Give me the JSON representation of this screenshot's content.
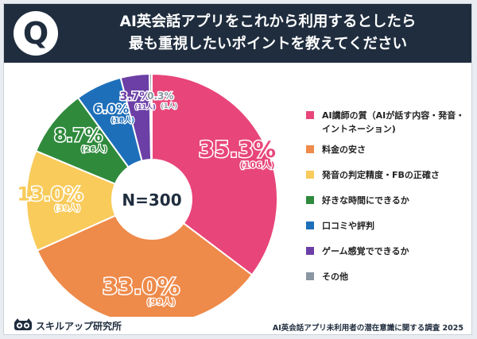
{
  "header": {
    "badge": "Q",
    "title_line1": "AI英会話アプリをこれから利用するとしたら",
    "title_line2": "最も重視したいポイントを教えてください"
  },
  "chart_data": {
    "type": "pie",
    "donut": true,
    "center_label": "N=300",
    "legend_position": "right",
    "slices": [
      {
        "label": "AI講師の質（AIが話す内容・発音・イントネーション)",
        "legend_lines": [
          "AI講師の質（AIが話す内容・発音・",
          "イントネーション)"
        ],
        "percent": 35.3,
        "count": 106,
        "percent_label": "35.3%",
        "count_label": "(106人)",
        "color": "#e8457a"
      },
      {
        "label": "料金の安さ",
        "legend_lines": [
          "料金の安さ"
        ],
        "percent": 33.0,
        "count": 99,
        "percent_label": "33.0%",
        "count_label": "(99人)",
        "color": "#ee8a4a"
      },
      {
        "label": "発音の判定精度・FBの正確さ",
        "legend_lines": [
          "発音の判定精度・FBの正確さ"
        ],
        "percent": 13.0,
        "count": 39,
        "percent_label": "13.0%",
        "count_label": "(39人)",
        "color": "#f9cb5b"
      },
      {
        "label": "好きな時間にできるか",
        "legend_lines": [
          "好きな時間にできるか"
        ],
        "percent": 8.7,
        "count": 26,
        "percent_label": "8.7%",
        "count_label": "(26人)",
        "color": "#2f8a3c"
      },
      {
        "label": "口コミや評判",
        "legend_lines": [
          "口コミや評判"
        ],
        "percent": 6.0,
        "count": 18,
        "percent_label": "6.0%",
        "count_label": "(18人)",
        "color": "#1e6fba"
      },
      {
        "label": "ゲーム感覚でできるか",
        "legend_lines": [
          "ゲーム感覚でできるか"
        ],
        "percent": 3.7,
        "count": 11,
        "percent_label": "3.7%",
        "count_label": "(11人)",
        "color": "#6b3fa6"
      },
      {
        "label": "その他",
        "legend_lines": [
          "その他"
        ],
        "percent": 0.3,
        "count": 1,
        "percent_label": "0.3%",
        "count_label": "(1人)",
        "color": "#8b96a3"
      }
    ]
  },
  "footer": {
    "brand": "スキルアップ研究所",
    "logo_icon": "owl-logo-icon",
    "source": "AI英会話アプリ未利用者の潜在意識に関する調査 2025"
  }
}
